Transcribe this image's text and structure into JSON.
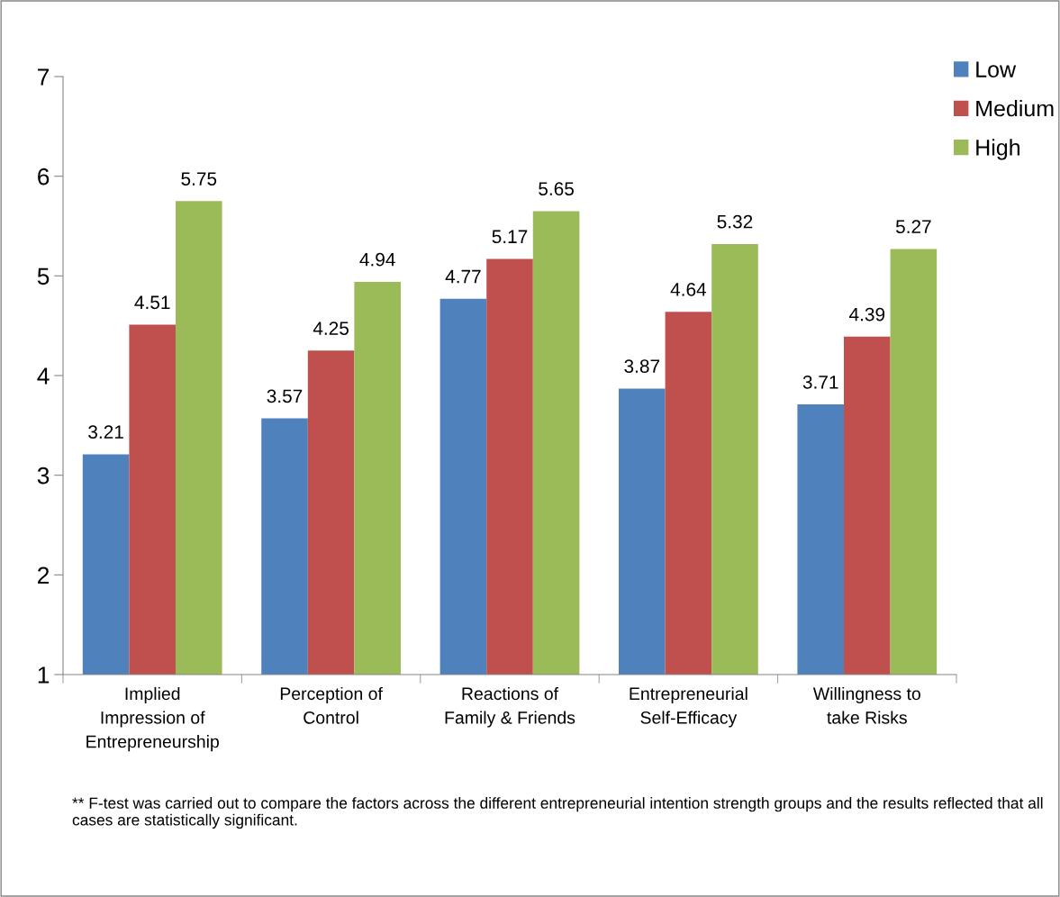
{
  "chart_data": {
    "type": "bar",
    "categories": [
      "Implied\nImpression of\nEntrepreneurship",
      "Perception of\nControl",
      "Reactions of\nFamily & Friends",
      "Entrepreneurial\nSelf-Efficacy",
      "Willingness to\ntake Risks"
    ],
    "series": [
      {
        "name": "Low",
        "color": "#4f81bd",
        "values": [
          3.21,
          3.57,
          4.77,
          3.87,
          3.71
        ]
      },
      {
        "name": "Medium",
        "color": "#c0504d",
        "values": [
          4.51,
          4.25,
          5.17,
          4.64,
          4.39
        ]
      },
      {
        "name": "High",
        "color": "#9bbb59",
        "values": [
          5.75,
          4.94,
          5.65,
          5.32,
          5.27
        ]
      }
    ],
    "ylim": [
      1,
      7
    ],
    "yticks": [
      1,
      2,
      3,
      4,
      5,
      6,
      7
    ],
    "data_labels": true,
    "grid": false,
    "legend": "top right",
    "annotations": [
      "** F-test was carried out to compare the factors across the different entrepreneurial intention strength groups and the results reflected that all cases are statistically significant."
    ]
  }
}
